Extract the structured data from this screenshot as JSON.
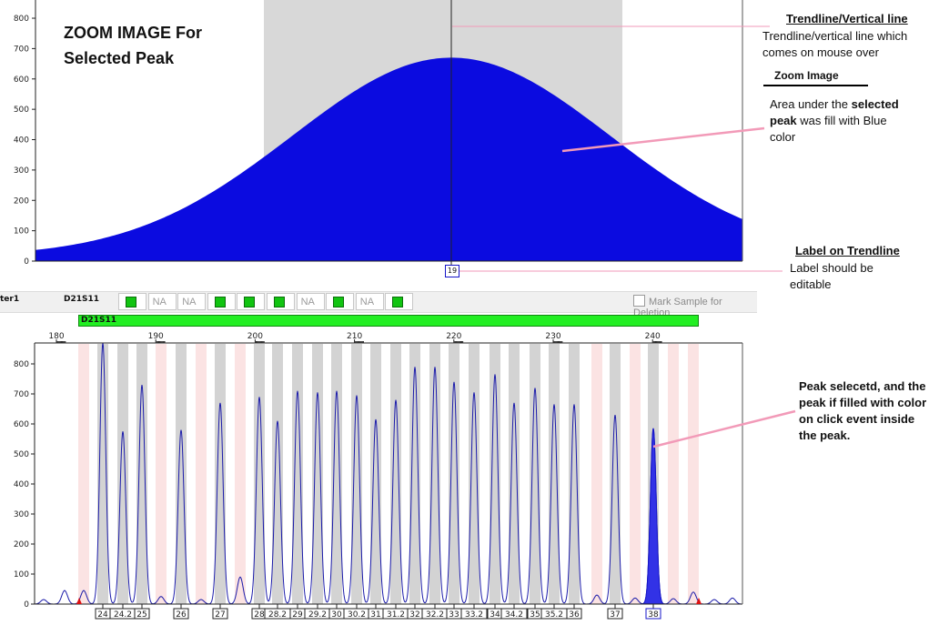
{
  "zoom": {
    "title_line1": "ZOOM IMAGE For",
    "title_line2": "Selected Peak",
    "trendline_label": "19",
    "y_ticks": [
      "0",
      "100",
      "200",
      "300",
      "400",
      "500",
      "600",
      "700",
      "800"
    ]
  },
  "sample": {
    "sample_name": "ter1",
    "marker_name": "D21S11",
    "alleles": [
      {
        "state": "green"
      },
      {
        "state": "na",
        "text": "NA"
      },
      {
        "state": "na",
        "text": "NA"
      },
      {
        "state": "green"
      },
      {
        "state": "green"
      },
      {
        "state": "green"
      },
      {
        "state": "na",
        "text": "NA"
      },
      {
        "state": "green"
      },
      {
        "state": "na",
        "text": "NA"
      },
      {
        "state": "green"
      }
    ],
    "mark_deletion_label": "Mark Sample for Deletion",
    "bin_bar_label": "D21S11"
  },
  "electropherogram": {
    "x_ticks": [
      "180",
      "190",
      "200",
      "210",
      "220",
      "230",
      "240"
    ],
    "y_ticks": [
      "0",
      "100",
      "200",
      "300",
      "400",
      "500",
      "600",
      "700",
      "800"
    ],
    "allele_labels": [
      "24",
      "24.2",
      "25",
      "26",
      "27",
      "28",
      "28.2",
      "29",
      "29.2",
      "30",
      "30.2",
      "31",
      "31.2",
      "32",
      "32.2",
      "33",
      "33.2",
      "34",
      "34.2",
      "35",
      "35.2",
      "36",
      "37",
      "38"
    ]
  },
  "annotations": {
    "trendline": {
      "heading": "Trendline/Vertical line",
      "body": "Trendline/vertical line which comes on mouse over"
    },
    "zoom": {
      "heading": "Zoom Image",
      "body_prefix": "Area under the ",
      "body_bold": "selected peak",
      "body_suffix": " was fill  with Blue color"
    },
    "label": {
      "heading": "Label on Trendline",
      "body": "Label should be editable"
    },
    "peak": {
      "body": "Peak selecetd, and the peak if filled with color on click event inside the peak."
    }
  },
  "colors": {
    "peak_fill": "#0b0be0",
    "zoom_band": "#d8d8d8",
    "bin_grey": "#d3d3d3",
    "bin_pink": "#fbe3e3",
    "trace": "#1c1caa",
    "pointer": "#f29ab8",
    "bin_bar": "#22ee22"
  }
}
